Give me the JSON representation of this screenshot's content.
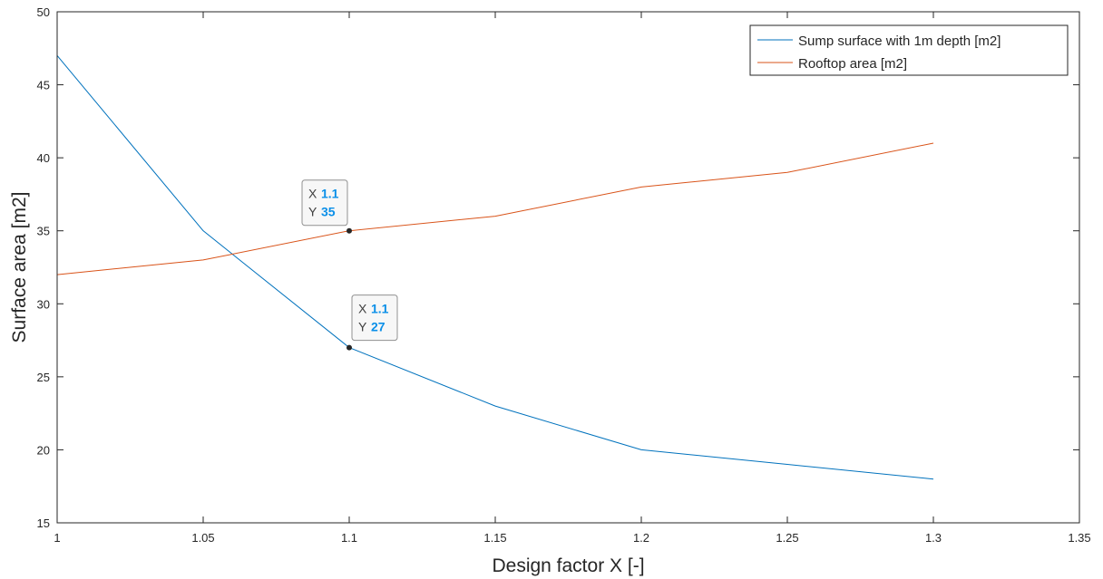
{
  "chart_data": {
    "type": "line",
    "title": "",
    "xlabel": "Design factor X [-]",
    "ylabel": "Surface area [m2]",
    "xlim": [
      1,
      1.35
    ],
    "ylim": [
      15,
      50
    ],
    "x_ticks": [
      "1",
      "1.05",
      "1.1",
      "1.15",
      "1.2",
      "1.25",
      "1.3",
      "1.35"
    ],
    "y_ticks": [
      "15",
      "20",
      "25",
      "30",
      "35",
      "40",
      "45",
      "50"
    ],
    "grid": false,
    "legend_position": "top-right",
    "x": [
      1,
      1.05,
      1.1,
      1.15,
      1.2,
      1.25,
      1.3
    ],
    "series": [
      {
        "name": "Sump surface with 1m depth [m2]",
        "color": "#0072bd",
        "values": [
          47,
          35,
          27,
          23,
          20,
          19,
          18
        ]
      },
      {
        "name": "Rooftop area [m2]",
        "color": "#d95319",
        "values": [
          32,
          33,
          35,
          36,
          38,
          39,
          41
        ]
      }
    ],
    "datatips": [
      {
        "x_label": "X",
        "x_value": "1.1",
        "y_label": "Y",
        "y_value": "35",
        "x": 1.1,
        "y": 35,
        "placement": "above-left"
      },
      {
        "x_label": "X",
        "x_value": "1.1",
        "y_label": "Y",
        "y_value": "27",
        "x": 1.1,
        "y": 27,
        "placement": "above-right"
      }
    ]
  }
}
